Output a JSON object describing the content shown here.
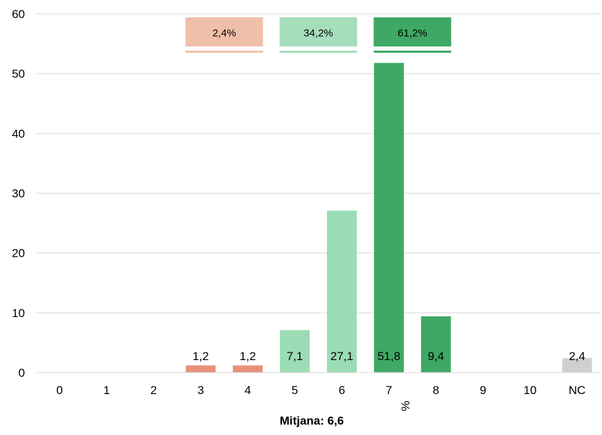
{
  "chart_data": {
    "type": "bar",
    "categories": [
      "0",
      "1",
      "2",
      "3",
      "4",
      "5",
      "6",
      "7",
      "8",
      "9",
      "10",
      "NC"
    ],
    "values": [
      null,
      null,
      null,
      1.2,
      1.2,
      7.1,
      27.1,
      51.8,
      9.4,
      null,
      null,
      2.4
    ],
    "data_labels": [
      "",
      "",
      "",
      "1,2",
      "1,2",
      "7,1",
      "27,1",
      "51,8",
      "9,4",
      "",
      "",
      "2,4"
    ],
    "bar_colors": [
      "",
      "",
      "",
      "#E8927A",
      "#E8927A",
      "#9CDCB4",
      "#9CDCB4",
      "#3FA864",
      "#3FA864",
      "",
      "",
      "#D0D0D0"
    ],
    "ylim": [
      0,
      60
    ],
    "yticks": [
      "0",
      "10",
      "20",
      "30",
      "40",
      "50",
      "60"
    ],
    "xlabel": "%",
    "grid": true,
    "group_labels": [
      {
        "text": "2,4%",
        "from": "3",
        "to": "4",
        "color": "#F0BFA9"
      },
      {
        "text": "34,2%",
        "from": "5",
        "to": "6",
        "color": "#A6DDBB"
      },
      {
        "text": "61,2%",
        "from": "7",
        "to": "8",
        "color": "#3FA864"
      }
    ],
    "annotation": "Mitjana: 6,6"
  }
}
